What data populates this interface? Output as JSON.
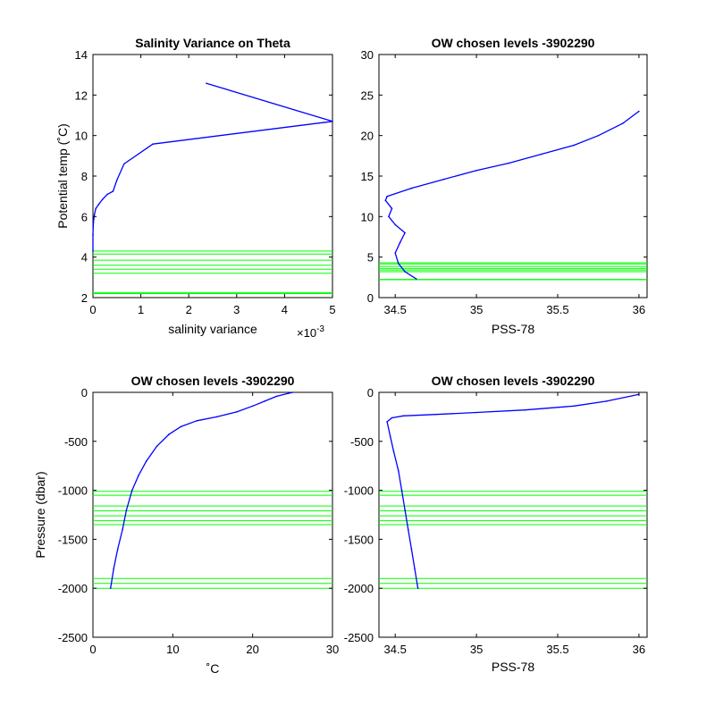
{
  "chart_data": [
    {
      "id": "p1",
      "type": "line",
      "title": "Salinity Variance on Theta",
      "xlabel": "salinity variance",
      "xlabel_exponent": "×10",
      "xlabel_exponent_power": "-3",
      "ylabel": "Potential temp (˚C)",
      "xlim": [
        0,
        5
      ],
      "ylim": [
        2,
        14
      ],
      "xticks": [
        0,
        1,
        2,
        3,
        4,
        5
      ],
      "yticks": [
        2,
        4,
        6,
        8,
        10,
        12,
        14
      ],
      "series": [
        {
          "color": "#0000ff",
          "x": [
            0,
            0,
            0.01,
            0.03,
            0.06,
            0.12,
            0.2,
            0.3,
            0.42,
            0.5,
            0.65,
            1.25,
            5.0,
            2.37
          ],
          "y": [
            4.3,
            5.1,
            5.7,
            6.1,
            6.4,
            6.6,
            6.85,
            7.1,
            7.25,
            7.8,
            8.6,
            9.58,
            10.7,
            12.58
          ]
        }
      ],
      "hlines": [
        2.2,
        2.25,
        3.2,
        3.4,
        3.6,
        3.85,
        4.15,
        4.3
      ],
      "hline_color": "#00ff00"
    },
    {
      "id": "p2",
      "type": "line",
      "title": "OW chosen levels -3902290",
      "xlabel": "PSS-78",
      "ylabel": "",
      "xlim": [
        34.4,
        36.05
      ],
      "ylim": [
        0,
        30
      ],
      "xticks": [
        34.5,
        35,
        35.5,
        36
      ],
      "yticks": [
        0,
        5,
        10,
        15,
        20,
        25,
        30
      ],
      "series": [
        {
          "color": "#0000ff",
          "x": [
            34.63,
            34.56,
            34.52,
            34.5,
            34.53,
            34.56,
            34.5,
            34.46,
            34.48,
            34.44,
            34.45,
            34.6,
            34.8,
            35.0,
            35.2,
            35.4,
            35.6,
            35.75,
            35.9,
            36.0
          ],
          "y": [
            2.3,
            3.2,
            4.2,
            5.5,
            6.8,
            8.0,
            9.0,
            10.0,
            11.0,
            12.0,
            12.5,
            13.5,
            14.6,
            15.7,
            16.6,
            17.7,
            18.8,
            20.0,
            21.5,
            23.0
          ]
        }
      ],
      "hlines": [
        2.2,
        2.25,
        3.2,
        3.4,
        3.6,
        3.85,
        4.15,
        4.3
      ],
      "hline_color": "#00ff00"
    },
    {
      "id": "p3",
      "type": "line",
      "title": "OW chosen levels -3902290",
      "xlabel": "˚C",
      "ylabel": "Pressure (dbar)",
      "xlim": [
        0,
        30
      ],
      "ylim": [
        -2500,
        0
      ],
      "xticks": [
        0,
        10,
        20,
        30
      ],
      "yticks": [
        -2500,
        -2000,
        -1500,
        -1000,
        -500,
        0
      ],
      "series": [
        {
          "color": "#0000ff",
          "x": [
            2.2,
            2.6,
            3.1,
            3.7,
            4.2,
            4.9,
            5.7,
            6.7,
            8.0,
            9.5,
            11.0,
            13.0,
            15.5,
            18.0,
            20.0,
            21.5,
            23.0,
            25.0
          ],
          "y": [
            -2000,
            -1800,
            -1600,
            -1400,
            -1200,
            -1000,
            -850,
            -700,
            -550,
            -430,
            -350,
            -290,
            -250,
            -200,
            -140,
            -90,
            -40,
            0
          ]
        }
      ],
      "hlines": [
        -1010,
        -1050,
        -1160,
        -1210,
        -1260,
        -1310,
        -1350,
        -1900,
        -1950,
        -2000
      ],
      "hline_color": "#00ff00"
    },
    {
      "id": "p4",
      "type": "line",
      "title": "OW chosen levels -3902290",
      "xlabel": "PSS-78",
      "ylabel": "",
      "xlim": [
        34.4,
        36.05
      ],
      "ylim": [
        -2500,
        0
      ],
      "xticks": [
        34.5,
        35,
        35.5,
        36
      ],
      "yticks": [
        -2500,
        -2000,
        -1500,
        -1000,
        -500,
        0
      ],
      "series": [
        {
          "color": "#0000ff",
          "x": [
            34.64,
            34.62,
            34.6,
            34.58,
            34.56,
            34.54,
            34.52,
            34.49,
            34.47,
            34.45,
            34.48,
            34.55,
            34.75,
            35.0,
            35.3,
            35.6,
            35.8,
            36.0
          ],
          "y": [
            -2000,
            -1800,
            -1600,
            -1400,
            -1200,
            -1000,
            -800,
            -600,
            -450,
            -300,
            -260,
            -240,
            -225,
            -205,
            -180,
            -140,
            -90,
            -20
          ]
        }
      ],
      "hlines": [
        -1010,
        -1050,
        -1160,
        -1210,
        -1260,
        -1310,
        -1350,
        -1900,
        -1950,
        -2000
      ],
      "hline_color": "#00ff00"
    }
  ]
}
